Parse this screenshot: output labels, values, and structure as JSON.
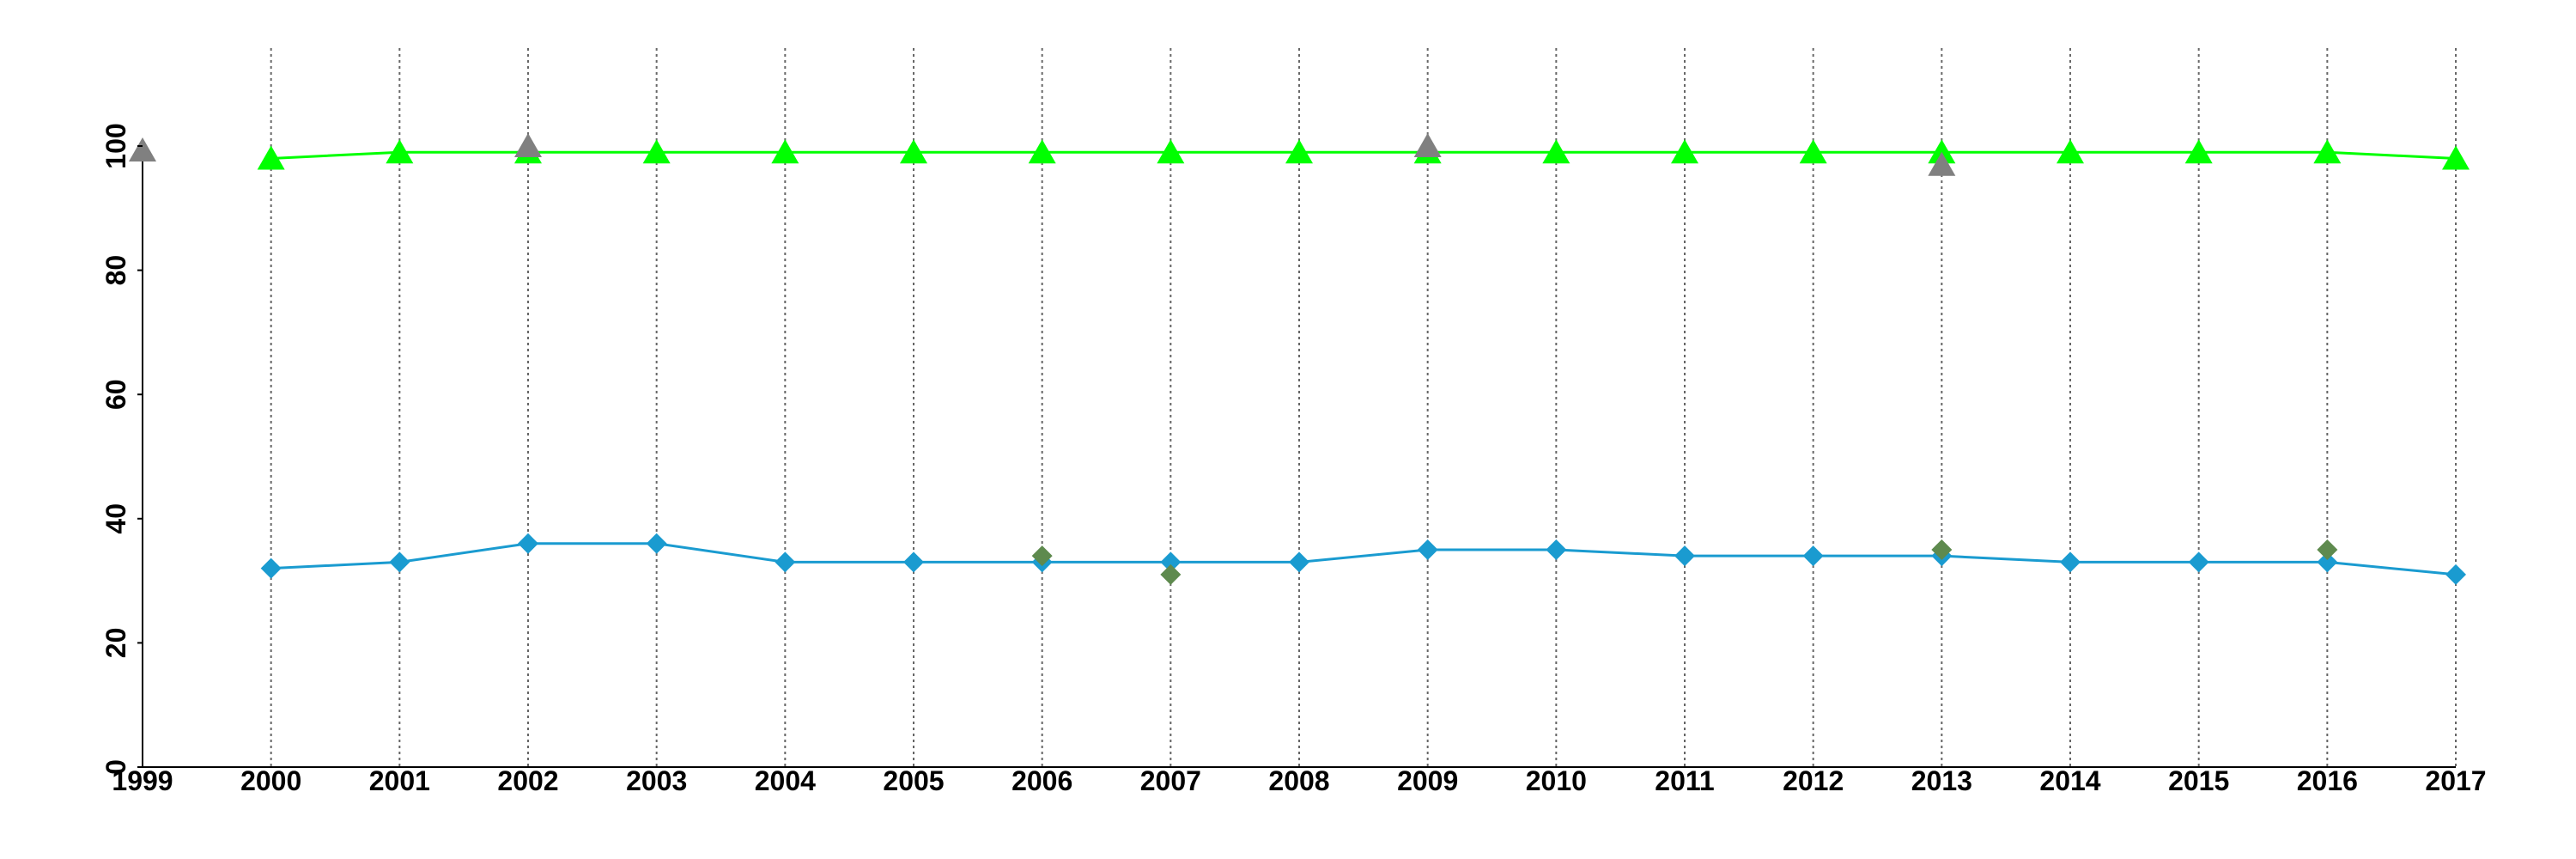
{
  "chart_data": {
    "type": "line",
    "x": [
      2000,
      2001,
      2002,
      2003,
      2004,
      2005,
      2006,
      2007,
      2008,
      2009,
      2010,
      2011,
      2012,
      2013,
      2014,
      2015,
      2016,
      2017
    ],
    "series": [
      {
        "color": "#00ff00",
        "marker": "triangle",
        "line": true,
        "values": [
          98,
          99,
          99,
          99,
          99,
          99,
          99,
          99,
          99,
          99,
          99,
          99,
          99,
          99,
          99,
          99,
          99,
          98
        ]
      },
      {
        "color": "#808080",
        "marker": "triangle",
        "line": false,
        "values": [
          null,
          null,
          100,
          null,
          null,
          null,
          null,
          null,
          null,
          100,
          null,
          null,
          null,
          97,
          null,
          null,
          null,
          null
        ]
      },
      {
        "color": "#1a9bd0",
        "marker": "diamond",
        "line": true,
        "values": [
          32,
          33,
          36,
          36,
          33,
          33,
          33,
          33,
          33,
          35,
          35,
          34,
          34,
          34,
          33,
          33,
          33,
          31
        ]
      },
      {
        "color": "#5e8a4e",
        "marker": "diamond",
        "line": false,
        "values": [
          null,
          null,
          null,
          null,
          null,
          null,
          34,
          31,
          null,
          null,
          null,
          null,
          null,
          35,
          null,
          null,
          35,
          null
        ]
      }
    ],
    "xlim": [
      1999,
      2017
    ],
    "xticks": [
      1999,
      2000,
      2001,
      2002,
      2003,
      2004,
      2005,
      2006,
      2007,
      2008,
      2009,
      2010,
      2011,
      2012,
      2013,
      2014,
      2015,
      2016,
      2017
    ],
    "ylim": [
      0,
      100
    ],
    "yticks": [
      0,
      20,
      40,
      60,
      80,
      100
    ],
    "grid": "x"
  }
}
